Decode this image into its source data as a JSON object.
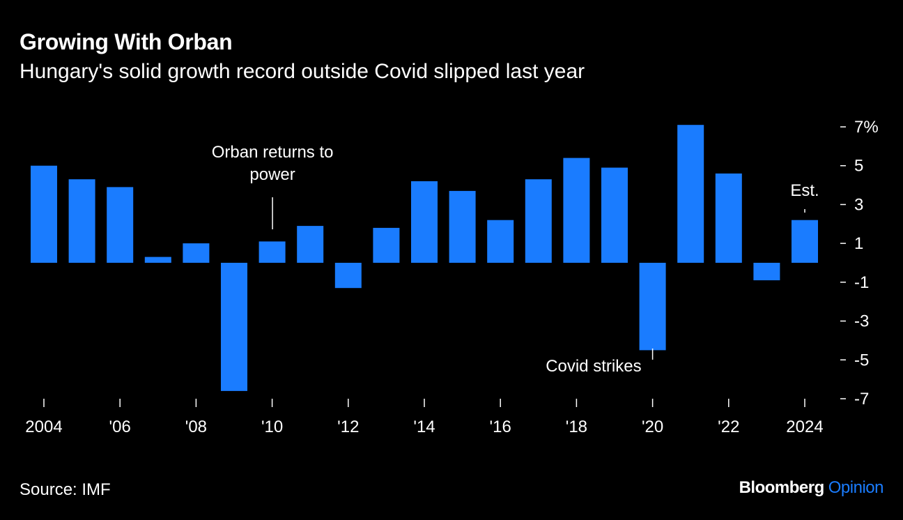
{
  "header": {
    "title": "Growing With Orban",
    "subtitle": "Hungary's solid growth record outside Covid slipped last year"
  },
  "footer": {
    "source": "Source: IMF",
    "brand_primary": "Bloomberg",
    "brand_secondary": "Opinion"
  },
  "colors": {
    "background": "#000000",
    "bar": "#1a7cff",
    "text": "#ffffff",
    "brand_accent": "#1a7cff"
  },
  "chart_data": {
    "type": "bar",
    "title": "Growing With Orban",
    "subtitle": "Hungary's solid growth record outside Covid slipped last year",
    "xlabel": "",
    "ylabel": "",
    "categories": [
      "2004",
      "2005",
      "2006",
      "2007",
      "2008",
      "2009",
      "2010",
      "2011",
      "2012",
      "2013",
      "2014",
      "2015",
      "2016",
      "2017",
      "2018",
      "2019",
      "2020",
      "2021",
      "2022",
      "2023",
      "2024"
    ],
    "values": [
      5.0,
      4.3,
      3.9,
      0.3,
      1.0,
      -6.6,
      1.1,
      1.9,
      -1.3,
      1.8,
      4.2,
      3.7,
      2.2,
      4.3,
      5.4,
      4.9,
      -4.5,
      7.1,
      4.6,
      -0.9,
      2.2
    ],
    "ylim": [
      -7,
      7
    ],
    "y_ticks": [
      7,
      5,
      3,
      1,
      -1,
      -3,
      -5,
      -7
    ],
    "y_tick_labels": [
      "7%",
      "5",
      "3",
      "1",
      "-1",
      "-3",
      "-5",
      "-7"
    ],
    "x_tick_labels": [
      {
        "index": 0,
        "label": "2004"
      },
      {
        "index": 2,
        "label": "'06"
      },
      {
        "index": 4,
        "label": "'08"
      },
      {
        "index": 6,
        "label": "'10"
      },
      {
        "index": 8,
        "label": "'12"
      },
      {
        "index": 10,
        "label": "'14"
      },
      {
        "index": 12,
        "label": "'16"
      },
      {
        "index": 14,
        "label": "'18"
      },
      {
        "index": 16,
        "label": "'20"
      },
      {
        "index": 18,
        "label": "'22"
      },
      {
        "index": 20,
        "label": "2024"
      }
    ],
    "y_axis_position": "right",
    "grid": false,
    "annotations": [
      {
        "index": 6,
        "lines": [
          "Orban returns to",
          "power"
        ]
      },
      {
        "index": 16,
        "lines": [
          "Covid strikes"
        ]
      },
      {
        "index": 20,
        "lines": [
          "Est."
        ]
      }
    ]
  }
}
